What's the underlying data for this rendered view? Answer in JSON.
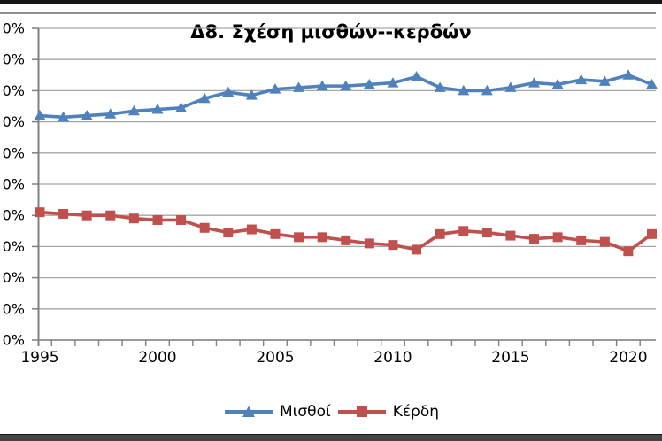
{
  "page": {
    "background": "#ffffff",
    "top_border_color": "#161616",
    "bottom_bar_color": "#454545"
  },
  "chart": {
    "title": "Δ8. Σχέση μισθών--κερδών",
    "gridline_color": "#a6a6a6",
    "axis_color": "#808080",
    "text_color": "#000000",
    "y_axis": {
      "tick_labels": [
        "0%",
        "0%",
        "0%",
        "0%",
        "0%",
        "0%",
        "0%",
        "0%",
        "0%",
        "0%",
        "0%"
      ]
    },
    "x_axis": {
      "tick_labels": [
        "1995",
        "2000",
        "2005",
        "2010",
        "2015",
        "2020"
      ]
    },
    "legend": [
      {
        "label": "Μισθοί",
        "color": "#4F81BD",
        "marker": "triangle"
      },
      {
        "label": "Κέρδη",
        "color": "#C0504D",
        "marker": "square"
      }
    ]
  },
  "chart_data": {
    "type": "line",
    "title": "Δ8. Σχέση μισθών--κερδών",
    "x": [
      1995,
      1996,
      1997,
      1998,
      1999,
      2000,
      2001,
      2002,
      2003,
      2004,
      2005,
      2006,
      2007,
      2008,
      2009,
      2010,
      2011,
      2012,
      2013,
      2014,
      2015,
      2016,
      2017,
      2018,
      2019,
      2020,
      2021
    ],
    "series": [
      {
        "name": "Μισθοί",
        "color": "#4F81BD",
        "marker": "triangle",
        "values": [
          72,
          71.5,
          72,
          72.5,
          73.5,
          74,
          74.5,
          77.5,
          79.5,
          78.5,
          80.5,
          81,
          81.5,
          81.5,
          82,
          82.5,
          84.5,
          81,
          80,
          80,
          81,
          82.5,
          82,
          83.5,
          83,
          85,
          82
        ]
      },
      {
        "name": "Κέρδη",
        "color": "#C0504D",
        "marker": "square",
        "values": [
          41,
          40.5,
          40,
          40,
          39,
          38.5,
          38.5,
          36,
          34.5,
          35.5,
          34,
          33,
          33,
          32,
          31,
          30.5,
          29,
          34,
          35,
          34.5,
          33.5,
          32.5,
          33,
          32,
          31.5,
          28.5,
          34
        ]
      }
    ],
    "xlabel": "",
    "ylabel": "",
    "ylim": [
      0,
      100
    ],
    "y_tick_step": 10,
    "y_tick_label_display": "0%",
    "x_tick_labels_shown": [
      1995,
      2000,
      2005,
      2010,
      2015,
      2020
    ],
    "grid": true,
    "legend_position": "bottom"
  }
}
